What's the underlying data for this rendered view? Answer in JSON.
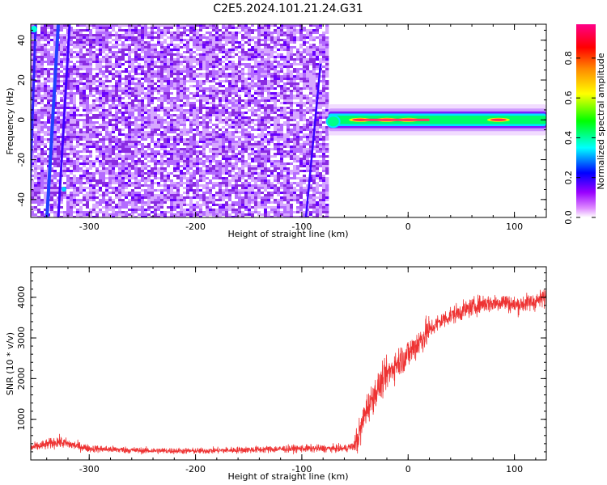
{
  "title": "C2E5.2024.101.21.24.G31",
  "colors": {
    "snr_line": "#ee3333",
    "spectrogram_noise": "#8a2be2",
    "colormap": [
      "#ffffff",
      "#dd88ff",
      "#9900ff",
      "#0000ff",
      "#00ffff",
      "#00ff00",
      "#ffff00",
      "#ff8800",
      "#ff0000",
      "#ff0088"
    ]
  },
  "chart_data": [
    {
      "type": "heatmap",
      "title": "",
      "xlabel": "Height of straight line (km)",
      "ylabel": "Frequency (Hz)",
      "xlim": [
        -355,
        130
      ],
      "ylim": [
        -49,
        48
      ],
      "x_ticks": [
        -300,
        -200,
        -100,
        0,
        100
      ],
      "y_ticks": [
        -40,
        -20,
        0,
        20,
        40
      ],
      "colorbar": {
        "label": "Normalized spectral amplitude",
        "range": [
          0,
          0.97
        ],
        "ticks": [
          "0.0",
          "0.2",
          "0.4",
          "0.6",
          "0.8"
        ]
      },
      "features": {
        "noise_region_x": [
          -355,
          -75
        ],
        "signal_band_x": [
          -75,
          130
        ],
        "signal_band_center_hz": 0,
        "signal_band_halfwidth_hz": 3,
        "signal_peaks_x": [
          -45,
          -20,
          0,
          85
        ]
      }
    },
    {
      "type": "line",
      "title": "",
      "xlabel": "Height of straight line (km)",
      "ylabel": "SNR (10 * v/v)",
      "xlim": [
        -355,
        130
      ],
      "ylim": [
        0,
        4750
      ],
      "x_ticks": [
        -300,
        -200,
        -100,
        0,
        100
      ],
      "y_ticks": [
        1000,
        2000,
        3000,
        4000
      ],
      "series": [
        {
          "x": [
            -355,
            -340,
            -330,
            -300,
            -250,
            -200,
            -150,
            -100,
            -60,
            -50,
            -45,
            -40,
            -30,
            -20,
            -10,
            0,
            10,
            20,
            30,
            40,
            50,
            60,
            70,
            80,
            90,
            100,
            110,
            120,
            130
          ],
          "y": [
            300,
            380,
            450,
            280,
            230,
            220,
            250,
            280,
            280,
            350,
            700,
            1200,
            1700,
            2100,
            2400,
            2600,
            2900,
            3200,
            3400,
            3550,
            3650,
            3750,
            3850,
            3850,
            3900,
            3800,
            3850,
            3900,
            4000
          ]
        }
      ]
    }
  ]
}
